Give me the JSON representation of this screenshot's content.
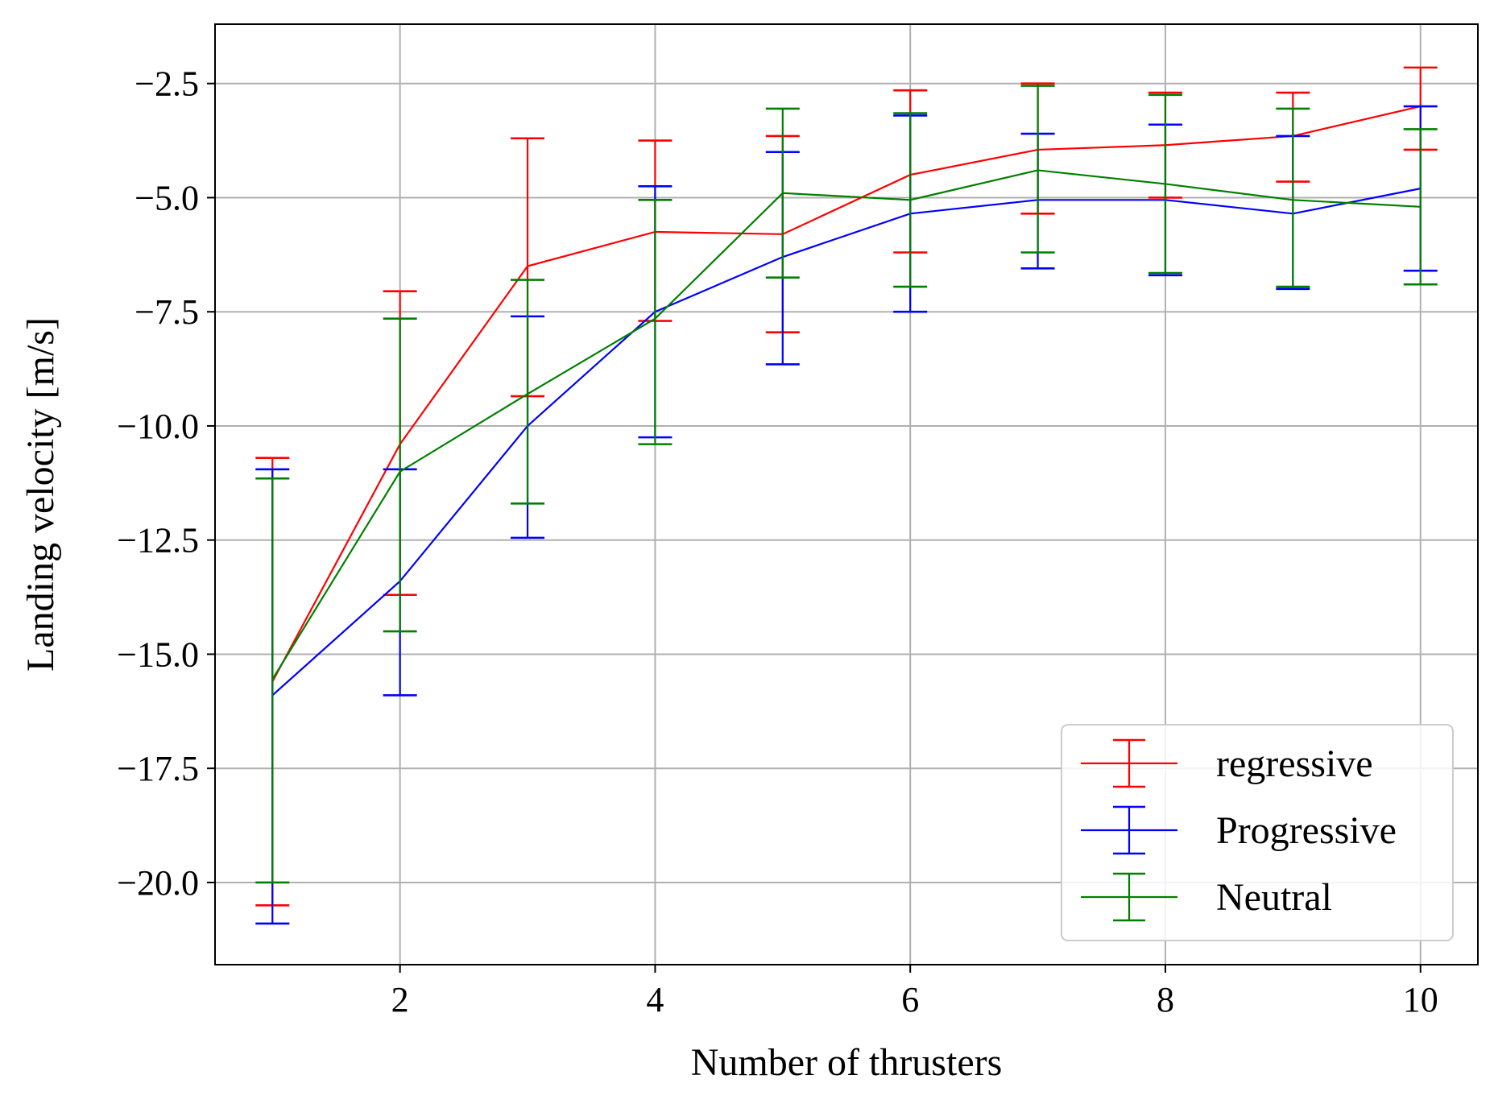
{
  "chart_data": {
    "type": "line",
    "xlabel": "Number of thrusters",
    "ylabel": "Landing velocity [m/s]",
    "xlim": [
      0.55,
      10.45
    ],
    "ylim": [
      -21.8,
      -1.2
    ],
    "xticks": [
      2,
      4,
      6,
      8,
      10
    ],
    "yticks": [
      -2.5,
      -5.0,
      -7.5,
      -10.0,
      -12.5,
      -15.0,
      -17.5,
      -20.0
    ],
    "ytick_labels": [
      "−2.5",
      "−5.0",
      "−7.5",
      "−10.0",
      "−12.5",
      "−15.0",
      "−17.5",
      "−20.0"
    ],
    "grid": true,
    "legend_position": "lower-right",
    "error_bars": true,
    "x": [
      1,
      2,
      3,
      4,
      5,
      6,
      7,
      8,
      9,
      10
    ],
    "series": [
      {
        "name": "regressive",
        "color": "#ff0000",
        "values": [
          -15.6,
          -10.4,
          -6.5,
          -5.75,
          -5.8,
          -4.5,
          -3.95,
          -3.85,
          -3.65,
          -3.0
        ],
        "err_low": [
          -20.5,
          -13.7,
          -9.35,
          -7.7,
          -7.95,
          -6.2,
          -5.35,
          -5.0,
          -4.65,
          -3.95
        ],
        "err_high": [
          -10.7,
          -7.05,
          -3.7,
          -3.75,
          -3.65,
          -2.65,
          -2.5,
          -2.7,
          -2.7,
          -2.15
        ]
      },
      {
        "name": "Progressive",
        "color": "#0000ff",
        "values": [
          -15.9,
          -13.4,
          -10.0,
          -7.5,
          -6.3,
          -5.35,
          -5.05,
          -5.05,
          -5.35,
          -4.8
        ],
        "err_low": [
          -20.9,
          -15.9,
          -12.45,
          -10.25,
          -8.65,
          -7.5,
          -6.55,
          -6.7,
          -7.0,
          -6.6
        ],
        "err_high": [
          -10.95,
          -10.95,
          -7.6,
          -4.75,
          -4.0,
          -3.2,
          -3.6,
          -3.4,
          -3.65,
          -3.0
        ]
      },
      {
        "name": "Neutral",
        "color": "#008000",
        "values": [
          -15.55,
          -11.0,
          -9.3,
          -7.65,
          -4.9,
          -5.05,
          -4.4,
          -4.7,
          -5.05,
          -5.2
        ],
        "err_low": [
          -20.0,
          -14.5,
          -11.7,
          -10.4,
          -6.75,
          -6.95,
          -6.2,
          -6.65,
          -6.95,
          -6.9
        ],
        "err_high": [
          -11.15,
          -7.65,
          -6.8,
          -5.05,
          -3.05,
          -3.15,
          -2.55,
          -2.75,
          -3.05,
          -3.5
        ]
      }
    ]
  }
}
